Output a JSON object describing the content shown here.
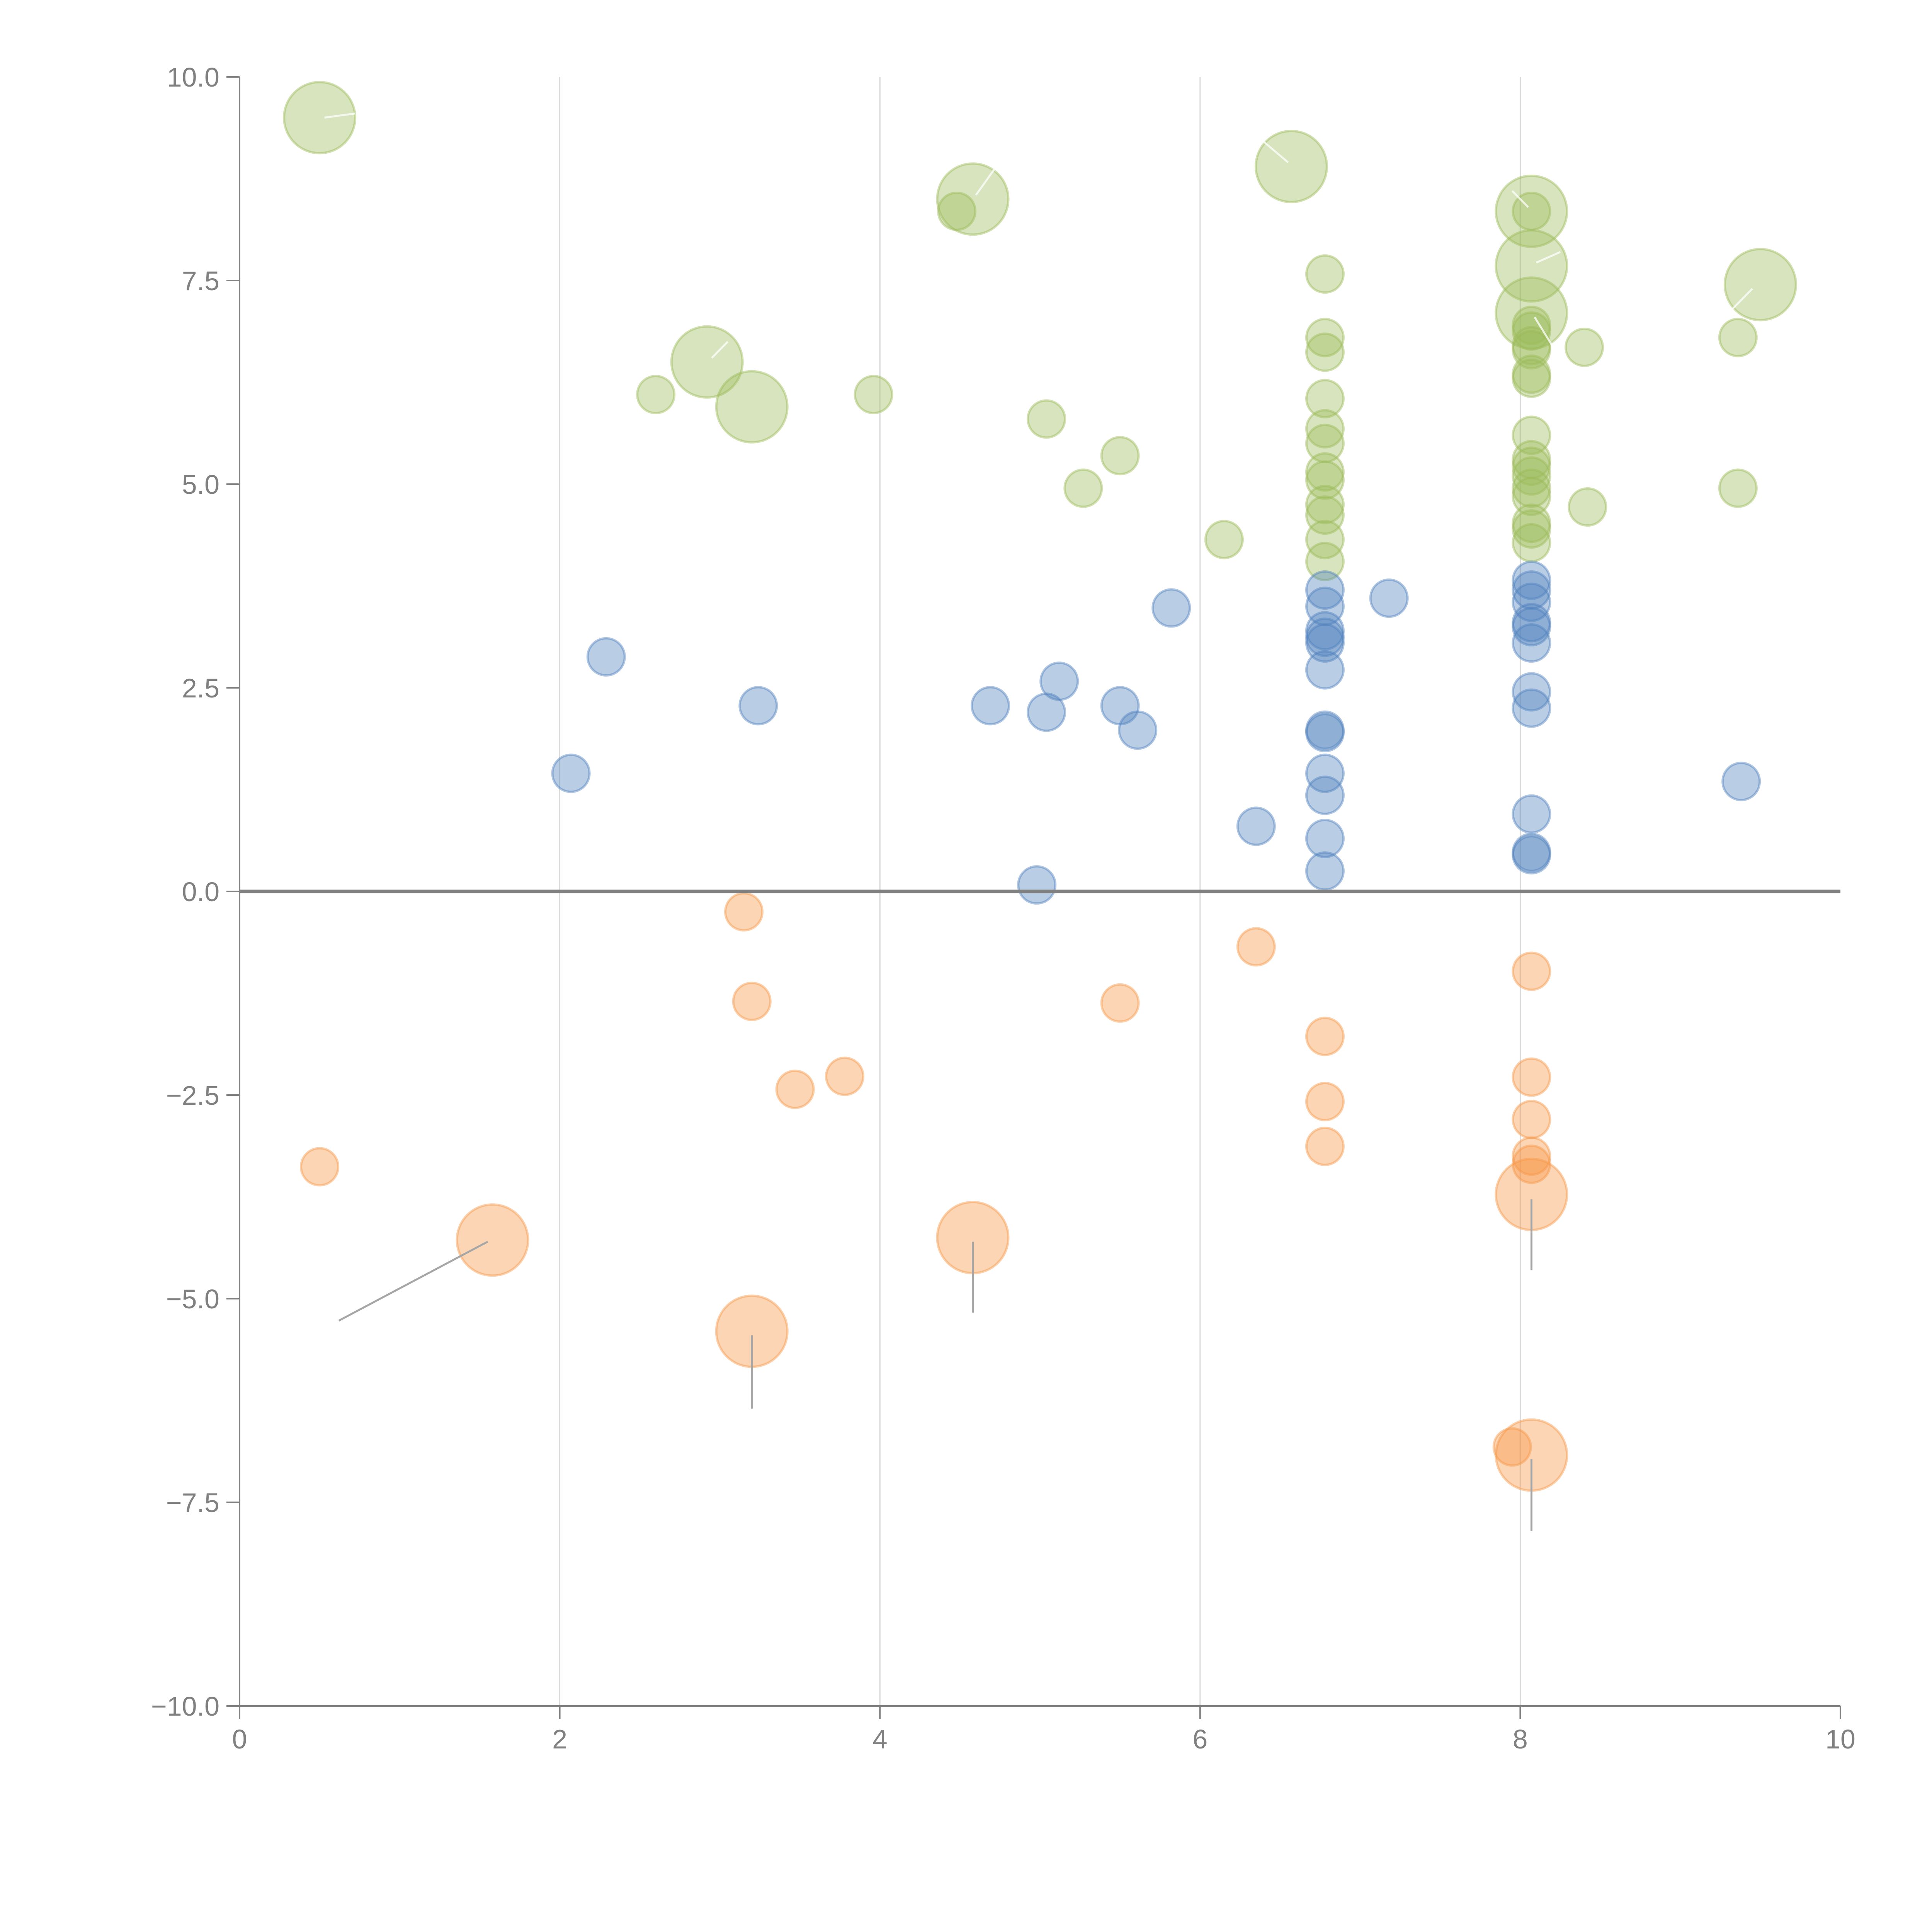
{
  "chart_data": {
    "type": "scatter",
    "subtype": "bubble",
    "title": "",
    "xlabel": "",
    "ylabel": "",
    "xlim": [
      0,
      10
    ],
    "ylim": [
      -10,
      10
    ],
    "x_ticks": [
      "0",
      "2",
      "4",
      "6",
      "8",
      "10"
    ],
    "y_ticks": [
      "-10.0",
      "-7.5",
      "-5.0",
      "-2.5",
      "0.0",
      "2.5",
      "5.0",
      "7.5",
      "10.0"
    ],
    "grid": "vertical",
    "legend": "none",
    "series": [
      {
        "name": "green",
        "color": "#9bbb59",
        "points": [
          {
            "x": 0.5,
            "y": 9.5,
            "size": "large"
          },
          {
            "x": 4.58,
            "y": 8.5,
            "size": "large"
          },
          {
            "x": 4.48,
            "y": 8.35,
            "size": "small"
          },
          {
            "x": 6.57,
            "y": 8.9,
            "size": "large"
          },
          {
            "x": 8.07,
            "y": 8.35,
            "size": "large"
          },
          {
            "x": 8.07,
            "y": 8.35,
            "size": "small"
          },
          {
            "x": 8.07,
            "y": 7.68,
            "size": "large"
          },
          {
            "x": 8.07,
            "y": 7.1,
            "size": "large"
          },
          {
            "x": 9.5,
            "y": 7.45,
            "size": "large"
          },
          {
            "x": 2.92,
            "y": 6.5,
            "size": "large"
          },
          {
            "x": 3.2,
            "y": 5.95,
            "size": "large"
          },
          {
            "x": 2.6,
            "y": 6.1,
            "size": "small"
          },
          {
            "x": 3.96,
            "y": 6.1,
            "size": "small"
          },
          {
            "x": 5.04,
            "y": 5.8,
            "size": "small"
          },
          {
            "x": 5.5,
            "y": 5.35,
            "size": "small"
          },
          {
            "x": 5.27,
            "y": 4.95,
            "size": "small"
          },
          {
            "x": 6.15,
            "y": 4.32,
            "size": "small"
          },
          {
            "x": 6.78,
            "y": 7.58,
            "size": "small"
          },
          {
            "x": 6.78,
            "y": 6.8,
            "size": "small"
          },
          {
            "x": 6.78,
            "y": 6.62,
            "size": "small"
          },
          {
            "x": 6.78,
            "y": 6.05,
            "size": "small"
          },
          {
            "x": 6.78,
            "y": 5.68,
            "size": "small"
          },
          {
            "x": 6.78,
            "y": 5.5,
            "size": "small"
          },
          {
            "x": 6.78,
            "y": 5.15,
            "size": "small"
          },
          {
            "x": 6.78,
            "y": 5.05,
            "size": "small"
          },
          {
            "x": 6.78,
            "y": 4.75,
            "size": "small"
          },
          {
            "x": 6.78,
            "y": 4.62,
            "size": "small"
          },
          {
            "x": 6.78,
            "y": 4.32,
            "size": "small"
          },
          {
            "x": 6.78,
            "y": 4.05,
            "size": "small"
          },
          {
            "x": 8.07,
            "y": 6.95,
            "size": "small"
          },
          {
            "x": 8.07,
            "y": 6.88,
            "size": "small"
          },
          {
            "x": 8.07,
            "y": 6.7,
            "size": "small"
          },
          {
            "x": 8.07,
            "y": 6.65,
            "size": "small"
          },
          {
            "x": 8.07,
            "y": 6.35,
            "size": "small"
          },
          {
            "x": 8.07,
            "y": 6.3,
            "size": "small"
          },
          {
            "x": 8.07,
            "y": 5.6,
            "size": "small"
          },
          {
            "x": 8.07,
            "y": 5.3,
            "size": "small"
          },
          {
            "x": 8.07,
            "y": 5.22,
            "size": "small"
          },
          {
            "x": 8.07,
            "y": 5.1,
            "size": "small"
          },
          {
            "x": 8.07,
            "y": 4.95,
            "size": "small"
          },
          {
            "x": 8.07,
            "y": 4.85,
            "size": "small"
          },
          {
            "x": 8.07,
            "y": 4.52,
            "size": "small"
          },
          {
            "x": 8.07,
            "y": 4.45,
            "size": "small"
          },
          {
            "x": 8.07,
            "y": 4.28,
            "size": "small"
          },
          {
            "x": 8.4,
            "y": 6.68,
            "size": "small"
          },
          {
            "x": 8.42,
            "y": 4.72,
            "size": "small"
          },
          {
            "x": 9.36,
            "y": 6.8,
            "size": "small"
          },
          {
            "x": 9.36,
            "y": 4.95,
            "size": "small"
          }
        ]
      },
      {
        "name": "blue",
        "color": "#4f81bd",
        "points": [
          {
            "x": 2.29,
            "y": 2.88,
            "size": "small"
          },
          {
            "x": 3.24,
            "y": 2.28,
            "size": "small"
          },
          {
            "x": 2.07,
            "y": 1.45,
            "size": "small"
          },
          {
            "x": 4.69,
            "y": 2.28,
            "size": "small"
          },
          {
            "x": 5.04,
            "y": 2.2,
            "size": "small"
          },
          {
            "x": 5.12,
            "y": 2.58,
            "size": "small"
          },
          {
            "x": 5.5,
            "y": 2.28,
            "size": "small"
          },
          {
            "x": 5.61,
            "y": 1.98,
            "size": "small"
          },
          {
            "x": 5.82,
            "y": 3.48,
            "size": "small"
          },
          {
            "x": 4.98,
            "y": 0.08,
            "size": "small"
          },
          {
            "x": 6.35,
            "y": 0.8,
            "size": "small"
          },
          {
            "x": 7.18,
            "y": 3.6,
            "size": "small"
          },
          {
            "x": 6.78,
            "y": 3.7,
            "size": "small"
          },
          {
            "x": 6.78,
            "y": 3.5,
            "size": "small"
          },
          {
            "x": 6.78,
            "y": 3.2,
            "size": "small"
          },
          {
            "x": 6.78,
            "y": 3.12,
            "size": "small"
          },
          {
            "x": 6.78,
            "y": 3.05,
            "size": "small"
          },
          {
            "x": 6.78,
            "y": 2.72,
            "size": "small"
          },
          {
            "x": 6.78,
            "y": 1.98,
            "size": "small"
          },
          {
            "x": 6.78,
            "y": 1.95,
            "size": "small"
          },
          {
            "x": 6.78,
            "y": 1.45,
            "size": "small"
          },
          {
            "x": 6.78,
            "y": 1.18,
            "size": "small"
          },
          {
            "x": 6.78,
            "y": 0.65,
            "size": "small"
          },
          {
            "x": 6.78,
            "y": 0.25,
            "size": "small"
          },
          {
            "x": 8.07,
            "y": 3.82,
            "size": "small"
          },
          {
            "x": 8.07,
            "y": 3.7,
            "size": "small"
          },
          {
            "x": 8.07,
            "y": 3.55,
            "size": "small"
          },
          {
            "x": 8.07,
            "y": 3.3,
            "size": "small"
          },
          {
            "x": 8.07,
            "y": 3.25,
            "size": "small"
          },
          {
            "x": 8.07,
            "y": 3.05,
            "size": "small"
          },
          {
            "x": 8.07,
            "y": 2.45,
            "size": "small"
          },
          {
            "x": 8.07,
            "y": 2.25,
            "size": "small"
          },
          {
            "x": 8.07,
            "y": 0.95,
            "size": "small"
          },
          {
            "x": 8.07,
            "y": 0.48,
            "size": "small"
          },
          {
            "x": 8.07,
            "y": 0.45,
            "size": "small"
          },
          {
            "x": 9.38,
            "y": 1.35,
            "size": "small"
          }
        ]
      },
      {
        "name": "orange",
        "color": "#f79646",
        "points": [
          {
            "x": 3.15,
            "y": -0.25,
            "size": "small"
          },
          {
            "x": 3.2,
            "y": -1.35,
            "size": "small"
          },
          {
            "x": 3.47,
            "y": -2.43,
            "size": "small"
          },
          {
            "x": 3.78,
            "y": -2.27,
            "size": "small"
          },
          {
            "x": 5.5,
            "y": -1.37,
            "size": "small"
          },
          {
            "x": 6.35,
            "y": -0.68,
            "size": "small"
          },
          {
            "x": 6.78,
            "y": -1.78,
            "size": "small"
          },
          {
            "x": 6.78,
            "y": -2.58,
            "size": "small"
          },
          {
            "x": 6.78,
            "y": -3.13,
            "size": "small"
          },
          {
            "x": 8.07,
            "y": -0.98,
            "size": "small"
          },
          {
            "x": 8.07,
            "y": -2.28,
            "size": "small"
          },
          {
            "x": 8.07,
            "y": -2.8,
            "size": "small"
          },
          {
            "x": 8.07,
            "y": -3.25,
            "size": "small"
          },
          {
            "x": 8.07,
            "y": -3.35,
            "size": "small"
          },
          {
            "x": 8.07,
            "y": -3.72,
            "size": "large"
          },
          {
            "x": 0.5,
            "y": -3.38,
            "size": "small"
          },
          {
            "x": 1.58,
            "y": -4.28,
            "size": "large"
          },
          {
            "x": 4.58,
            "y": -4.25,
            "size": "large"
          },
          {
            "x": 3.2,
            "y": -5.4,
            "size": "large"
          },
          {
            "x": 7.95,
            "y": -6.82,
            "size": "small"
          },
          {
            "x": 8.07,
            "y": -6.92,
            "size": "large"
          }
        ]
      }
    ],
    "leader_lines": [
      {
        "from": [
          1.55,
          -4.3
        ],
        "to": [
          0.62,
          -5.27
        ],
        "color": "gray"
      },
      {
        "from": [
          4.58,
          -4.3
        ],
        "to": [
          4.58,
          -5.17
        ],
        "color": "gray"
      },
      {
        "from": [
          3.2,
          -5.45
        ],
        "to": [
          3.2,
          -6.35
        ],
        "color": "gray"
      },
      {
        "from": [
          8.07,
          -3.78
        ],
        "to": [
          8.07,
          -4.65
        ],
        "color": "gray"
      },
      {
        "from": [
          8.07,
          -6.97
        ],
        "to": [
          8.07,
          -7.85
        ],
        "color": "gray"
      },
      {
        "from": [
          0.53,
          9.5
        ],
        "to": [
          0.72,
          9.55
        ],
        "color": "white"
      },
      {
        "from": [
          4.6,
          8.55
        ],
        "to": [
          4.72,
          8.88
        ],
        "color": "white"
      },
      {
        "from": [
          6.55,
          8.95
        ],
        "to": [
          6.4,
          9.2
        ],
        "color": "white"
      },
      {
        "from": [
          8.05,
          8.4
        ],
        "to": [
          7.95,
          8.6
        ],
        "color": "white"
      },
      {
        "from": [
          8.1,
          7.72
        ],
        "to": [
          8.25,
          7.85
        ],
        "color": "white"
      },
      {
        "from": [
          8.09,
          7.05
        ],
        "to": [
          8.2,
          6.7
        ],
        "color": "white"
      },
      {
        "from": [
          9.45,
          7.4
        ],
        "to": [
          9.3,
          7.1
        ],
        "color": "white"
      },
      {
        "from": [
          2.95,
          6.55
        ],
        "to": [
          3.05,
          6.75
        ],
        "color": "white"
      }
    ]
  }
}
